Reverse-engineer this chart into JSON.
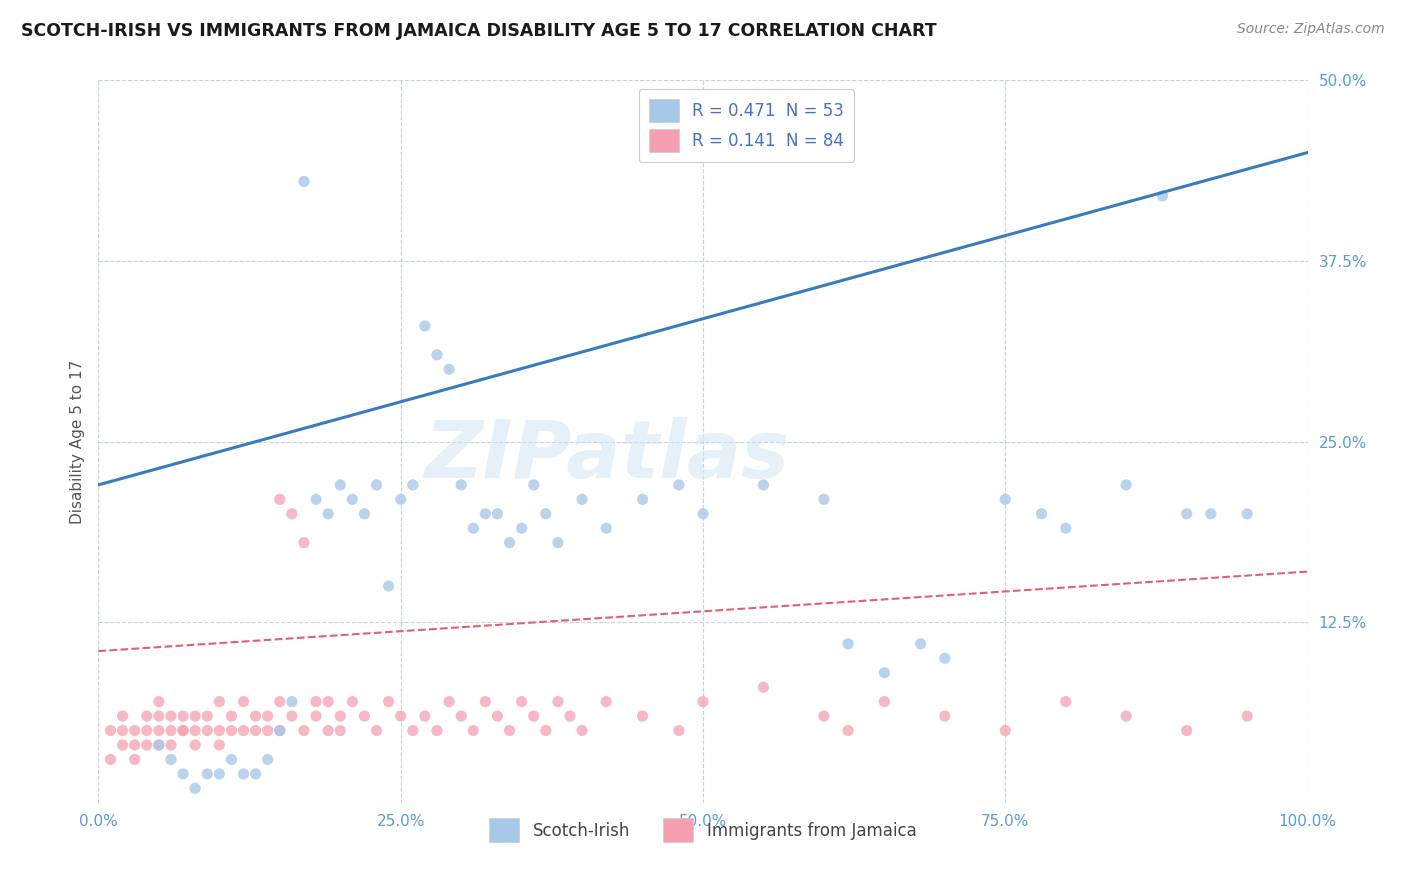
{
  "title": "SCOTCH-IRISH VS IMMIGRANTS FROM JAMAICA DISABILITY AGE 5 TO 17 CORRELATION CHART",
  "source": "Source: ZipAtlas.com",
  "ylabel": "Disability Age 5 to 17",
  "legend_label1": "Scotch-Irish",
  "legend_label2": "Immigrants from Jamaica",
  "r1": 0.471,
  "n1": 53,
  "r2": 0.141,
  "n2": 84,
  "color1": "#a8c8e8",
  "color2": "#f4a0b0",
  "line_color1": "#3a7bbf",
  "line_color2": "#e06070",
  "background": "#ffffff",
  "watermark": "ZIPatlas",
  "xlim": [
    0,
    100
  ],
  "ylim": [
    0,
    50
  ],
  "blue_line_x0": 0,
  "blue_line_y0": 22.0,
  "blue_line_x1": 100,
  "blue_line_y1": 45.0,
  "pink_line_x0": 0,
  "pink_line_y0": 10.5,
  "pink_line_x1": 100,
  "pink_line_y1": 16.0,
  "scotch_irish_x": [
    5,
    6,
    7,
    8,
    9,
    10,
    11,
    12,
    13,
    14,
    15,
    16,
    17,
    18,
    19,
    20,
    21,
    22,
    23,
    24,
    25,
    26,
    27,
    28,
    29,
    30,
    31,
    32,
    33,
    34,
    35,
    36,
    37,
    38,
    40,
    42,
    45,
    48,
    50,
    55,
    60,
    62,
    65,
    68,
    70,
    75,
    78,
    80,
    85,
    88,
    90,
    92,
    95
  ],
  "scotch_irish_y": [
    4,
    3,
    2,
    1,
    2,
    2,
    3,
    2,
    2,
    3,
    5,
    7,
    43,
    21,
    20,
    22,
    21,
    20,
    22,
    15,
    21,
    22,
    33,
    31,
    30,
    22,
    19,
    20,
    20,
    18,
    19,
    22,
    20,
    18,
    21,
    19,
    21,
    22,
    20,
    22,
    21,
    11,
    9,
    11,
    10,
    21,
    20,
    19,
    22,
    42,
    20,
    20,
    20
  ],
  "jamaica_x": [
    1,
    1,
    2,
    2,
    2,
    3,
    3,
    3,
    4,
    4,
    4,
    5,
    5,
    5,
    5,
    6,
    6,
    6,
    7,
    7,
    7,
    8,
    8,
    8,
    9,
    9,
    10,
    10,
    10,
    11,
    11,
    12,
    12,
    13,
    13,
    14,
    14,
    15,
    15,
    15,
    16,
    16,
    17,
    17,
    18,
    18,
    19,
    19,
    20,
    20,
    21,
    22,
    23,
    24,
    25,
    26,
    27,
    28,
    29,
    30,
    31,
    32,
    33,
    34,
    35,
    36,
    37,
    38,
    39,
    40,
    42,
    45,
    48,
    50,
    55,
    60,
    62,
    65,
    70,
    75,
    80,
    85,
    90,
    95
  ],
  "jamaica_y": [
    3,
    5,
    4,
    6,
    5,
    3,
    5,
    4,
    6,
    4,
    5,
    7,
    5,
    6,
    4,
    5,
    6,
    4,
    5,
    6,
    5,
    6,
    5,
    4,
    5,
    6,
    7,
    5,
    4,
    5,
    6,
    5,
    7,
    6,
    5,
    6,
    5,
    21,
    7,
    5,
    20,
    6,
    18,
    5,
    7,
    6,
    5,
    7,
    6,
    5,
    7,
    6,
    5,
    7,
    6,
    5,
    6,
    5,
    7,
    6,
    5,
    7,
    6,
    5,
    7,
    6,
    5,
    7,
    6,
    5,
    7,
    6,
    5,
    7,
    8,
    6,
    5,
    7,
    6,
    5,
    7,
    6,
    5,
    6
  ]
}
